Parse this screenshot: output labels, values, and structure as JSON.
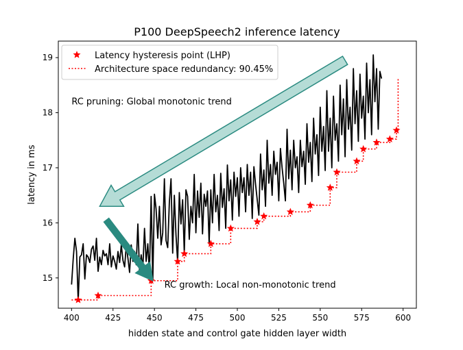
{
  "chart_data": {
    "type": "line",
    "title": "P100 DeepSpeech2 inference latency",
    "xlabel": "hidden state and control gate hidden layer width",
    "ylabel": "latency in ms",
    "xlim": [
      392,
      608
    ],
    "ylim": [
      14.45,
      19.3
    ],
    "xticks": [
      400,
      425,
      450,
      475,
      500,
      525,
      550,
      575,
      600
    ],
    "yticks": [
      15,
      16,
      17,
      18,
      19
    ],
    "grid": false,
    "legend_position": "top-left",
    "legend": [
      {
        "name": "Latency hysteresis point (LHP)",
        "marker": "star",
        "color": "#ff0000"
      },
      {
        "name": "Architecture space redundancy: 90.45%",
        "style": "dotted",
        "color": "#ff0000"
      }
    ],
    "annotations": [
      {
        "text": "RC pruning: Global monotonic trend",
        "x": 400,
        "y": 18.15
      },
      {
        "text": "RC growth: Local non-monotonic trend",
        "x": 456,
        "y": 14.82
      }
    ],
    "arrows": [
      {
        "name": "pruning-arrow",
        "from": [
          565,
          18.95
        ],
        "to": [
          417,
          16.3
        ],
        "color": "#b5dcd6",
        "edge": "#2a8a80"
      },
      {
        "name": "growth-arrow",
        "from": [
          421,
          16.05
        ],
        "to": [
          449,
          14.95
        ],
        "color": "#2a8a80",
        "edge": "#2a8a80"
      }
    ],
    "series": [
      {
        "name": "latency",
        "color": "#000000",
        "style": "solid",
        "x_start": 400,
        "x_step": 1,
        "values": [
          14.88,
          15.35,
          15.72,
          15.48,
          14.58,
          15.38,
          15.42,
          15.62,
          14.98,
          15.42,
          15.38,
          15.28,
          15.52,
          15.58,
          15.32,
          15.72,
          15.12,
          15.38,
          15.24,
          15.5,
          15.4,
          15.44,
          15.24,
          15.62,
          15.2,
          15.4,
          15.3,
          15.16,
          15.48,
          15.28,
          15.6,
          15.32,
          15.2,
          15.58,
          15.36,
          15.1,
          15.6,
          15.3,
          15.48,
          15.24,
          15.98,
          15.12,
          15.42,
          15.18,
          15.9,
          15.3,
          15.62,
          15.08,
          16.48,
          14.95,
          16.52,
          16.25,
          15.72,
          16.3,
          15.6,
          15.82,
          16.8,
          15.68,
          15.55,
          16.38,
          16.8,
          15.45,
          16.5,
          15.78,
          15.28,
          16.55,
          15.98,
          16.42,
          15.45,
          16.6,
          16.48,
          15.7,
          16.3,
          16.0,
          16.88,
          15.82,
          16.58,
          16.1,
          16.72,
          15.8,
          16.52,
          16.3,
          16.58,
          15.62,
          16.6,
          16.0,
          16.88,
          16.2,
          16.5,
          15.86,
          16.9,
          16.28,
          16.62,
          15.9,
          17.05,
          16.4,
          16.78,
          16.05,
          16.92,
          16.48,
          16.82,
          16.12,
          17.0,
          16.55,
          16.82,
          16.2,
          17.06,
          16.5,
          16.92,
          16.08,
          17.02,
          16.7,
          16.42,
          16.14,
          17.25,
          16.6,
          16.96,
          16.3,
          17.5,
          16.72,
          17.06,
          16.5,
          17.3,
          16.88,
          17.1,
          16.4,
          17.35,
          17.0,
          16.72,
          16.4,
          17.7,
          16.8,
          17.32,
          16.6,
          17.5,
          17.0,
          17.2,
          16.55,
          17.5,
          17.02,
          17.3,
          16.7,
          17.8,
          17.1,
          17.46,
          16.75,
          17.9,
          17.25,
          17.6,
          16.86,
          18.1,
          17.3,
          17.75,
          16.95,
          18.4,
          17.3,
          17.9,
          17.0,
          18.3,
          17.5,
          17.8,
          17.12,
          18.5,
          17.6,
          18.25,
          17.2,
          18.6,
          17.7,
          18.1,
          17.32,
          18.8,
          17.8,
          18.4,
          17.48,
          18.7,
          17.9,
          18.3,
          17.52,
          18.9,
          18.0,
          18.6,
          17.6,
          19.05,
          18.2,
          18.8,
          17.7,
          18.75,
          18.62
        ]
      },
      {
        "name": "Latency hysteresis point (LHP)",
        "color": "#ff0000",
        "marker": "star",
        "points": [
          [
            404,
            14.6
          ],
          [
            416,
            14.68
          ],
          [
            448,
            14.95
          ],
          [
            464,
            15.3
          ],
          [
            468,
            15.44
          ],
          [
            484,
            15.62
          ],
          [
            496,
            15.9
          ],
          [
            512,
            16.02
          ],
          [
            516,
            16.12
          ],
          [
            532,
            16.2
          ],
          [
            544,
            16.32
          ],
          [
            556,
            16.64
          ],
          [
            560,
            16.92
          ],
          [
            572,
            17.12
          ],
          [
            576,
            17.34
          ],
          [
            584,
            17.46
          ],
          [
            592,
            17.52
          ],
          [
            596,
            17.68
          ]
        ]
      },
      {
        "name": "Architecture space redundancy: 90.45%",
        "color": "#ff0000",
        "style": "dotted",
        "steps": [
          [
            400,
            14.6
          ],
          [
            404,
            14.6
          ],
          [
            416,
            14.68
          ],
          [
            448,
            14.95
          ],
          [
            464,
            15.3
          ],
          [
            468,
            15.44
          ],
          [
            484,
            15.62
          ],
          [
            496,
            15.9
          ],
          [
            512,
            16.02
          ],
          [
            516,
            16.12
          ],
          [
            532,
            16.2
          ],
          [
            544,
            16.32
          ],
          [
            556,
            16.64
          ],
          [
            560,
            16.92
          ],
          [
            572,
            17.12
          ],
          [
            576,
            17.34
          ],
          [
            584,
            17.46
          ],
          [
            592,
            17.52
          ],
          [
            596,
            17.68
          ],
          [
            597,
            18.62
          ]
        ]
      }
    ]
  }
}
